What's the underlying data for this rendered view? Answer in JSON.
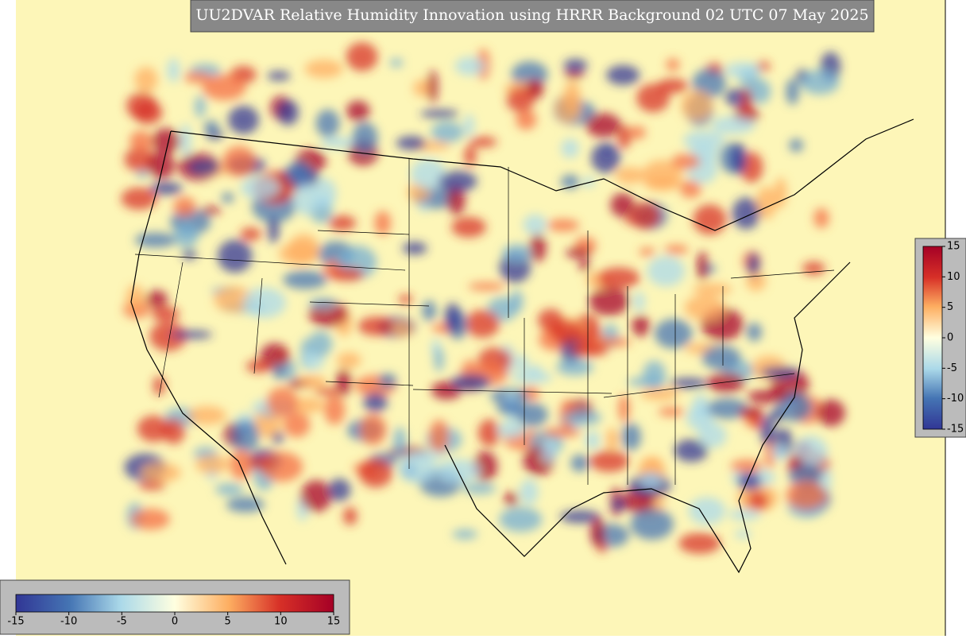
{
  "title": "UU2DVAR Relative Humidity Innovation using HRRR Background 02 UTC 07 May 2025",
  "colorbars": [
    {
      "orientation": "horizontal",
      "lim": [
        -15,
        15
      ],
      "ticks": [
        -15,
        -10,
        -5,
        0,
        5,
        10,
        15
      ]
    },
    {
      "orientation": "vertical",
      "lim": [
        -15,
        15
      ],
      "ticks": [
        -15,
        -10,
        -5,
        0,
        5,
        10,
        15
      ]
    }
  ]
}
